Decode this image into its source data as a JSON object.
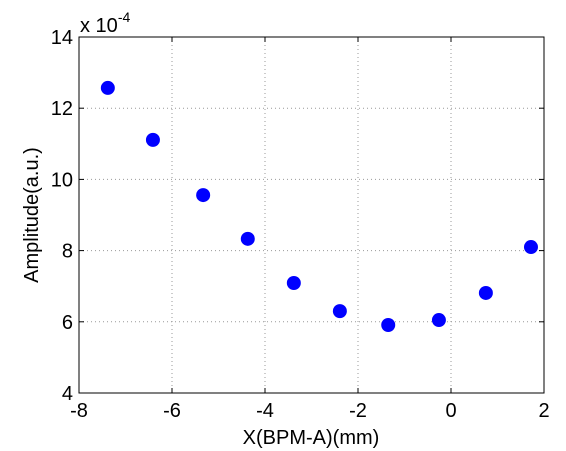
{
  "chart_data": {
    "type": "scatter",
    "xlabel": "X(BPM-A)(mm)",
    "ylabel": "Amplitude(a.u.)",
    "y_multiplier": {
      "base": "x 10",
      "exponent": "-4"
    },
    "x": [
      -7.38,
      -6.41,
      -5.33,
      -4.37,
      -3.38,
      -2.39,
      -1.35,
      -0.26,
      0.75,
      1.72
    ],
    "values": [
      12.57,
      11.11,
      9.56,
      8.33,
      7.09,
      6.3,
      5.91,
      6.05,
      6.81,
      8.1
    ],
    "color": "#0000ff",
    "xlim": [
      -8,
      2
    ],
    "xticks": [
      -8,
      -6,
      -4,
      -2,
      0,
      2
    ],
    "ylim": [
      4,
      14
    ],
    "yticks": [
      4,
      6,
      8,
      10,
      12,
      14
    ],
    "grid": true
  }
}
